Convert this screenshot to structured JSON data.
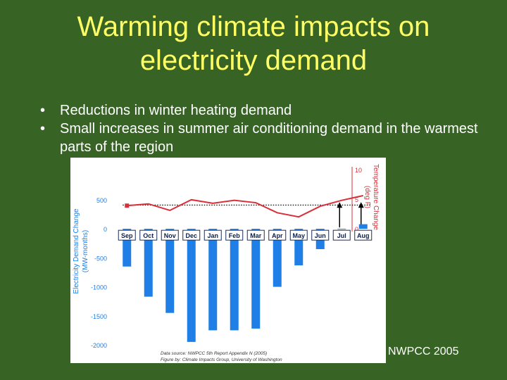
{
  "slide": {
    "title_line1": "Warming climate impacts on",
    "title_line2": "electricity demand",
    "bullets": [
      "Reductions in winter heating demand",
      "Small increases in summer air conditioning demand in the warmest parts of the region"
    ],
    "credit": "NWPCC 2005"
  },
  "chart_data": {
    "type": "bar",
    "categories": [
      "Sep",
      "Oct",
      "Nov",
      "Dec",
      "Jan",
      "Feb",
      "Mar",
      "Apr",
      "May",
      "Jun",
      "Jul",
      "Aug"
    ],
    "series": [
      {
        "type": "bar",
        "axis": "left",
        "values": [
          -650,
          -1170,
          -1450,
          -1950,
          -1750,
          -1750,
          -1720,
          -1000,
          -630,
          -350,
          -10,
          80
        ]
      },
      {
        "type": "line",
        "axis": "right",
        "values": [
          3.9,
          4.2,
          3.1,
          4.9,
          4.3,
          4.8,
          4.4,
          2.7,
          2.0,
          3.8,
          4.8,
          5.6
        ]
      }
    ],
    "reference_line": {
      "axis": "right",
      "value": 4.0,
      "style": "dotted"
    },
    "arrows_on": [
      "Jul",
      "Aug"
    ],
    "ylabel": "Electricity Demand Change",
    "ylabel_sub": "(MW-months)",
    "ylim": [
      -2000,
      500
    ],
    "y_ticks": [
      500,
      0,
      -500,
      -1000,
      -1500,
      -2000
    ],
    "y2label": "Temperature Change",
    "y2label_sub": "(deg F)",
    "y2lim": [
      0,
      10
    ],
    "y2_ticks": [
      10,
      5,
      0
    ],
    "bar_color": "#1f7fe6",
    "line_color": "#d92f3a",
    "grid": false,
    "source_line1": "Data source: NWPCC 5th Report Appendix N (2005)",
    "source_line2": "Figure by: Climate Impacts Group, University of Washington"
  }
}
